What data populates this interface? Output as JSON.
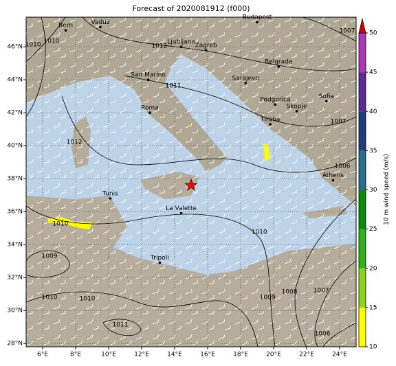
{
  "map": {
    "title": "Forecast of 2020081912 (f000)",
    "lon_lim": [
      5,
      25
    ],
    "lat_lim": [
      27.8,
      47.8
    ],
    "grid": true,
    "lon_ticks": [
      {
        "value": 6,
        "label": "6°E"
      },
      {
        "value": 8,
        "label": "8°E"
      },
      {
        "value": 10,
        "label": "10°E"
      },
      {
        "value": 12,
        "label": "12°E"
      },
      {
        "value": 14,
        "label": "14°E"
      },
      {
        "value": 16,
        "label": "16°E"
      },
      {
        "value": 18,
        "label": "18°E"
      },
      {
        "value": 20,
        "label": "20°E"
      },
      {
        "value": 22,
        "label": "22°E"
      },
      {
        "value": 24,
        "label": "24°E"
      }
    ],
    "lat_ticks": [
      {
        "value": 28,
        "label": "28°N"
      },
      {
        "value": 30,
        "label": "30°N"
      },
      {
        "value": 32,
        "label": "32°N"
      },
      {
        "value": 34,
        "label": "34°N"
      },
      {
        "value": 36,
        "label": "36°N"
      },
      {
        "value": 38,
        "label": "38°N"
      },
      {
        "value": 40,
        "label": "40°N"
      },
      {
        "value": 42,
        "label": "42°N"
      },
      {
        "value": 44,
        "label": "44°N"
      },
      {
        "value": 46,
        "label": "46°N"
      }
    ],
    "cities": [
      {
        "name": "Bern",
        "lon": 7.4,
        "lat": 47.0
      },
      {
        "name": "Vaduz",
        "lon": 9.5,
        "lat": 47.2
      },
      {
        "name": "Budapest",
        "lon": 19.0,
        "lat": 47.5
      },
      {
        "name": "Ljubljana",
        "lon": 14.4,
        "lat": 46.0
      },
      {
        "name": "Zagreb",
        "lon": 15.9,
        "lat": 45.8
      },
      {
        "name": "Belgrade",
        "lon": 20.3,
        "lat": 44.8
      },
      {
        "name": "San Marino",
        "lon": 12.4,
        "lat": 44.0
      },
      {
        "name": "Sarajevo",
        "lon": 18.3,
        "lat": 43.8
      },
      {
        "name": "Podgorica",
        "lon": 20.1,
        "lat": 42.5
      },
      {
        "name": "Sofia",
        "lon": 23.2,
        "lat": 42.7
      },
      {
        "name": "Roma",
        "lon": 12.5,
        "lat": 42.0
      },
      {
        "name": "Skopje",
        "lon": 21.4,
        "lat": 42.1
      },
      {
        "name": "Tirana",
        "lon": 19.8,
        "lat": 41.3
      },
      {
        "name": "Athens",
        "lon": 23.6,
        "lat": 37.9
      },
      {
        "name": "Tunis",
        "lon": 10.1,
        "lat": 36.8
      },
      {
        "name": "La Valette",
        "lon": 14.4,
        "lat": 35.9
      },
      {
        "name": "Tripoli",
        "lon": 13.1,
        "lat": 32.9
      }
    ],
    "isobar_labels": [
      {
        "label": "1010",
        "lon": 5.42,
        "lat": 46.13
      },
      {
        "label": "1010",
        "lon": 6.54,
        "lat": 46.34
      },
      {
        "label": "1012",
        "lon": 13.08,
        "lat": 46.05
      },
      {
        "label": "1011",
        "lon": 13.92,
        "lat": 43.63
      },
      {
        "label": "1012",
        "lon": 7.92,
        "lat": 40.22
      },
      {
        "label": "1007",
        "lon": 24.46,
        "lat": 46.97
      },
      {
        "label": "1007",
        "lon": 23.92,
        "lat": 41.47
      },
      {
        "label": "1006",
        "lon": 24.17,
        "lat": 38.76
      },
      {
        "label": "1010",
        "lon": 7.08,
        "lat": 35.26
      },
      {
        "label": "1009",
        "lon": 6.42,
        "lat": 33.3
      },
      {
        "label": "1010",
        "lon": 19.13,
        "lat": 34.76
      },
      {
        "label": "1010",
        "lon": 6.42,
        "lat": 30.8
      },
      {
        "label": "1010",
        "lon": 8.71,
        "lat": 30.72
      },
      {
        "label": "1011",
        "lon": 10.71,
        "lat": 29.13
      },
      {
        "label": "1009",
        "lon": 19.63,
        "lat": 30.8
      },
      {
        "label": "1008",
        "lon": 20.96,
        "lat": 31.13
      },
      {
        "label": "1007",
        "lon": 22.88,
        "lat": 31.22
      },
      {
        "label": "1006",
        "lon": 22.96,
        "lat": 28.59
      }
    ],
    "marker": {
      "lon": 15.0,
      "lat": 37.6,
      "color": "#ff0000"
    },
    "colorbar": {
      "label": "10 m wind speed (m/s)",
      "lim": [
        10,
        50
      ],
      "ticks": [
        10,
        15,
        20,
        25,
        30,
        35,
        40,
        45,
        50
      ],
      "colors": [
        "#ffff00",
        "#8fd21e",
        "#2fb21a",
        "#0c8a10",
        "#2a6f8c",
        "#1f3d78",
        "#5b2c8e",
        "#a83ab8"
      ],
      "extend_color": "#cc0000"
    }
  }
}
